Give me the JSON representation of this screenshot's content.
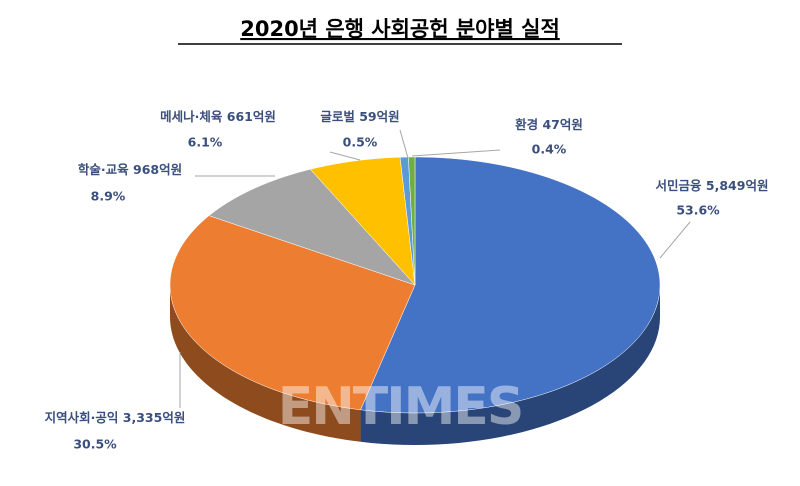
{
  "chart_data": {
    "type": "pie3d",
    "title": "2020년 은행 사회공헌 분야별 실적",
    "categories": [
      "서민금융",
      "지역사회·공익",
      "학술·교육",
      "메세나·체육",
      "글로벌",
      "환경"
    ],
    "values": [
      5849,
      3335,
      968,
      661,
      59,
      47
    ],
    "value_labels": [
      "5,849억원",
      "3,335억원",
      "968억원",
      "661억원",
      "59억원",
      "47억원"
    ],
    "shares": [
      53.6,
      30.5,
      8.9,
      6.1,
      0.5,
      0.4
    ],
    "share_labels": [
      "53.6%",
      "30.5%",
      "8.9%",
      "6.1%",
      "0.5%",
      "0.4%"
    ],
    "colors": [
      "#4472c4",
      "#ed7d31",
      "#a5a5a5",
      "#ffc000",
      "#5b9bd5",
      "#70ad47"
    ],
    "watermark": "ENTIMES"
  }
}
